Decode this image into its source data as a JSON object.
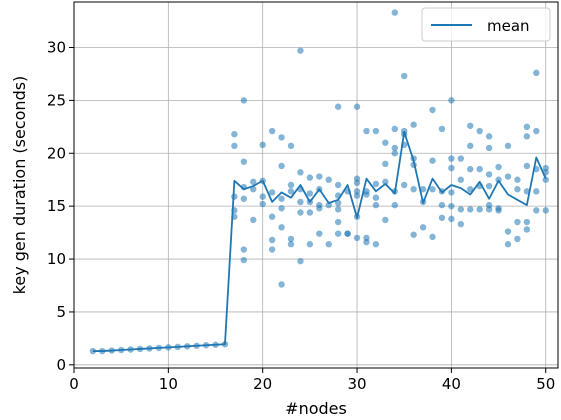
{
  "chart_data": {
    "type": "scatter",
    "title": "",
    "xlabel": "#nodes",
    "ylabel": "key gen duration (seconds)",
    "xlim": [
      0,
      51.3
    ],
    "ylim": [
      -0.3,
      34.3
    ],
    "xticks": [
      0,
      10,
      20,
      30,
      40,
      50
    ],
    "yticks": [
      0,
      5,
      10,
      15,
      20,
      25,
      30
    ],
    "grid": true,
    "legend": {
      "position": "top-right",
      "entries": [
        "mean"
      ]
    },
    "colors": {
      "points": "#1f77b4",
      "line": "#1f77b4",
      "grid": "#b0b0b0",
      "axis": "#000000"
    },
    "series": [
      {
        "name": "mean",
        "kind": "line",
        "x": [
          2,
          3,
          4,
          5,
          6,
          7,
          8,
          9,
          10,
          11,
          12,
          13,
          14,
          15,
          16,
          17,
          18,
          19,
          20,
          21,
          22,
          23,
          24,
          25,
          26,
          27,
          28,
          29,
          30,
          31,
          32,
          33,
          34,
          35,
          36,
          37,
          38,
          39,
          40,
          41,
          42,
          43,
          44,
          45,
          46,
          47,
          48,
          49,
          50
        ],
        "y": [
          1.3,
          1.3,
          1.35,
          1.4,
          1.45,
          1.5,
          1.55,
          1.6,
          1.65,
          1.7,
          1.75,
          1.8,
          1.85,
          1.9,
          1.95,
          17.4,
          16.6,
          16.9,
          17.4,
          15.4,
          16.3,
          15.8,
          17.0,
          15.4,
          16.6,
          15.3,
          15.6,
          17.0,
          13.9,
          17.6,
          16.4,
          17.1,
          16.2,
          22.0,
          19.3,
          15.3,
          17.6,
          16.3,
          17.0,
          16.7,
          16.1,
          17.3,
          15.7,
          17.4,
          16.1,
          15.6,
          15.1,
          19.6,
          17.6
        ]
      },
      {
        "name": "",
        "kind": "scatter",
        "points": [
          [
            2,
            1.3
          ],
          [
            3,
            1.3
          ],
          [
            4,
            1.35
          ],
          [
            5,
            1.4
          ],
          [
            6,
            1.45
          ],
          [
            7,
            1.5
          ],
          [
            8,
            1.55
          ],
          [
            9,
            1.6
          ],
          [
            10,
            1.65
          ],
          [
            11,
            1.7
          ],
          [
            12,
            1.75
          ],
          [
            13,
            1.8
          ],
          [
            14,
            1.85
          ],
          [
            15,
            1.9
          ],
          [
            16,
            1.95
          ],
          [
            17,
            21.8
          ],
          [
            17,
            20.7
          ],
          [
            17,
            15.9
          ],
          [
            17,
            14.6
          ],
          [
            17,
            14.0
          ],
          [
            18,
            25.0
          ],
          [
            18,
            19.2
          ],
          [
            18,
            16.8
          ],
          [
            18,
            15.7
          ],
          [
            18,
            10.9
          ],
          [
            18,
            9.9
          ],
          [
            19,
            17.3
          ],
          [
            19,
            16.6
          ],
          [
            19,
            13.7
          ],
          [
            20,
            20.8
          ],
          [
            20,
            17.4
          ],
          [
            20,
            15.9
          ],
          [
            20,
            15.2
          ],
          [
            21,
            22.1
          ],
          [
            21,
            16.3
          ],
          [
            21,
            14.0
          ],
          [
            21,
            11.8
          ],
          [
            21,
            10.9
          ],
          [
            22,
            21.5
          ],
          [
            22,
            18.8
          ],
          [
            22,
            15.7
          ],
          [
            22,
            14.8
          ],
          [
            22,
            13.0
          ],
          [
            22,
            7.6
          ],
          [
            23,
            20.7
          ],
          [
            23,
            17.0
          ],
          [
            23,
            16.4
          ],
          [
            23,
            11.9
          ],
          [
            23,
            11.4
          ],
          [
            24,
            29.7
          ],
          [
            24,
            18.2
          ],
          [
            24,
            16.6
          ],
          [
            24,
            15.4
          ],
          [
            24,
            14.4
          ],
          [
            24,
            9.8
          ],
          [
            25,
            17.7
          ],
          [
            25,
            16.2
          ],
          [
            25,
            15.4
          ],
          [
            25,
            14.4
          ],
          [
            25,
            11.4
          ],
          [
            26,
            17.8
          ],
          [
            26,
            16.6
          ],
          [
            26,
            15.1
          ],
          [
            26,
            14.8
          ],
          [
            26,
            12.4
          ],
          [
            27,
            17.5
          ],
          [
            27,
            15.1
          ],
          [
            27,
            11.4
          ],
          [
            28,
            24.4
          ],
          [
            28,
            17.0
          ],
          [
            28,
            16.0
          ],
          [
            28,
            15.3
          ],
          [
            28,
            14.7
          ],
          [
            28,
            13.5
          ],
          [
            28,
            12.4
          ],
          [
            29,
            16.4
          ],
          [
            29,
            12.4
          ],
          [
            29,
            12.4
          ],
          [
            30,
            24.4
          ],
          [
            30,
            17.6
          ],
          [
            30,
            17.2
          ],
          [
            30,
            16.4
          ],
          [
            30,
            16.0
          ],
          [
            30,
            14.0
          ],
          [
            30,
            12.0
          ],
          [
            31,
            22.1
          ],
          [
            31,
            16.4
          ],
          [
            31,
            16.1
          ],
          [
            31,
            12.0
          ],
          [
            31,
            11.6
          ],
          [
            32,
            22.1
          ],
          [
            32,
            17.1
          ],
          [
            32,
            15.8
          ],
          [
            32,
            15.1
          ],
          [
            32,
            11.4
          ],
          [
            33,
            21.0
          ],
          [
            33,
            19.0
          ],
          [
            33,
            17.3
          ],
          [
            33,
            13.7
          ],
          [
            34,
            33.3
          ],
          [
            34,
            22.3
          ],
          [
            34,
            20.5
          ],
          [
            34,
            20.0
          ],
          [
            34,
            16.4
          ],
          [
            34,
            15.1
          ],
          [
            35,
            27.3
          ],
          [
            35,
            22.1
          ],
          [
            35,
            21.8
          ],
          [
            35,
            20.8
          ],
          [
            35,
            17.0
          ],
          [
            36,
            22.7
          ],
          [
            36,
            19.5
          ],
          [
            36,
            18.9
          ],
          [
            36,
            16.6
          ],
          [
            36,
            12.3
          ],
          [
            37,
            16.6
          ],
          [
            37,
            15.4
          ],
          [
            37,
            13.0
          ],
          [
            38,
            24.1
          ],
          [
            38,
            19.3
          ],
          [
            38,
            16.6
          ],
          [
            38,
            12.1
          ],
          [
            39,
            22.3
          ],
          [
            39,
            16.4
          ],
          [
            39,
            15.1
          ],
          [
            39,
            13.9
          ],
          [
            40,
            25.0
          ],
          [
            40,
            19.5
          ],
          [
            40,
            18.6
          ],
          [
            40,
            16.3
          ],
          [
            40,
            15.0
          ],
          [
            40,
            13.8
          ],
          [
            41,
            19.5
          ],
          [
            41,
            17.5
          ],
          [
            41,
            14.7
          ],
          [
            41,
            13.3
          ],
          [
            42,
            22.6
          ],
          [
            42,
            20.7
          ],
          [
            42,
            18.5
          ],
          [
            42,
            16.6
          ],
          [
            42,
            14.7
          ],
          [
            43,
            22.1
          ],
          [
            43,
            18.5
          ],
          [
            43,
            16.9
          ],
          [
            43,
            14.7
          ],
          [
            44,
            21.6
          ],
          [
            44,
            20.5
          ],
          [
            44,
            18.0
          ],
          [
            44,
            16.9
          ],
          [
            44,
            15.1
          ],
          [
            44,
            14.7
          ],
          [
            45,
            18.7
          ],
          [
            45,
            17.5
          ],
          [
            45,
            14.8
          ],
          [
            45,
            14.6
          ],
          [
            46,
            20.7
          ],
          [
            46,
            17.8
          ],
          [
            46,
            12.6
          ],
          [
            46,
            11.4
          ],
          [
            47,
            17.5
          ],
          [
            47,
            16.6
          ],
          [
            47,
            13.5
          ],
          [
            47,
            11.9
          ],
          [
            48,
            22.5
          ],
          [
            48,
            21.6
          ],
          [
            48,
            18.8
          ],
          [
            48,
            16.4
          ],
          [
            48,
            13.5
          ],
          [
            48,
            12.8
          ],
          [
            49,
            27.6
          ],
          [
            49,
            22.1
          ],
          [
            49,
            18.5
          ],
          [
            49,
            16.4
          ],
          [
            49,
            14.6
          ],
          [
            50,
            18.6
          ],
          [
            50,
            18.2
          ],
          [
            50,
            17.5
          ],
          [
            50,
            14.6
          ]
        ]
      }
    ]
  }
}
